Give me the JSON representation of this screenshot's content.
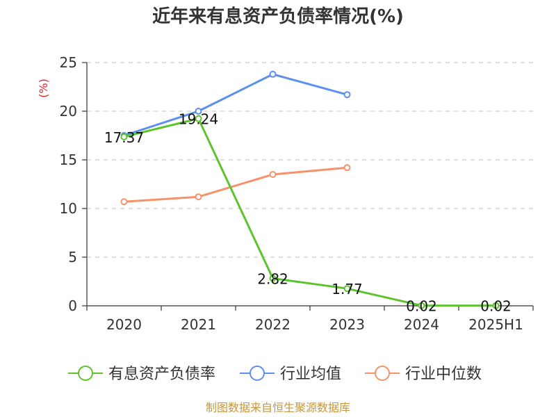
{
  "chart_data": {
    "type": "line",
    "title": "近年来有息资产负债率情况(%)",
    "ylabel": "(%)",
    "xlabel": "",
    "categories": [
      "2020",
      "2021",
      "2022",
      "2023",
      "2024",
      "2025H1"
    ],
    "ylim": [
      0,
      25
    ],
    "yticks": [
      "0",
      "5",
      "10",
      "15",
      "20",
      "25"
    ],
    "grid": true,
    "legend_position": "bottom",
    "series": [
      {
        "name": "有息资产负债率",
        "color": "#5cc42b",
        "values": [
          17.37,
          19.24,
          2.82,
          1.77,
          0.02,
          0.02
        ],
        "labels": [
          "17.37",
          "19.24",
          "2.82",
          "1.77",
          "0.02",
          "0.02"
        ]
      },
      {
        "name": "行业均值",
        "color": "#5b8ff0",
        "values": [
          17.5,
          20.0,
          23.8,
          21.7,
          null,
          null
        ]
      },
      {
        "name": "行业中位数",
        "color": "#f5926a",
        "values": [
          10.7,
          11.2,
          13.5,
          14.2,
          null,
          null
        ]
      }
    ],
    "source": "制图数据来自恒生聚源数据库"
  }
}
